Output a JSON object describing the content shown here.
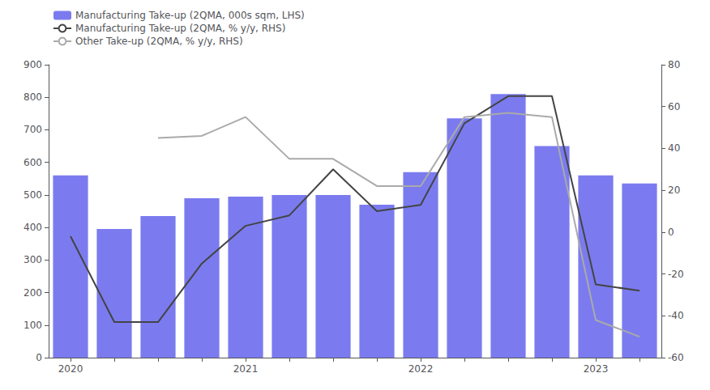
{
  "chart_data": {
    "type": "bar",
    "categories": [
      "2020",
      null,
      null,
      null,
      "2021",
      null,
      null,
      null,
      "2022",
      null,
      null,
      null,
      "2023",
      null
    ],
    "series": [
      {
        "name": "Manufacturing Take-up (2QMA, 000s sqm, LHS)",
        "type": "bar",
        "color": "#7b7bef",
        "axis": "y",
        "values": [
          560,
          395,
          435,
          490,
          495,
          500,
          500,
          470,
          570,
          735,
          810,
          650,
          560,
          535
        ]
      },
      {
        "name": "Manufacturing Take-up (2QMA, % y/y, RHS)",
        "type": "line",
        "color": "#444444",
        "axis": "y2",
        "values": [
          -2,
          -43,
          -43,
          -15,
          3,
          8,
          30,
          10,
          13,
          52,
          65,
          65,
          -25,
          -28
        ]
      },
      {
        "name": "Other Take-up (2QMA, % y/y, RHS)",
        "type": "line",
        "color": "#aaaaaa",
        "axis": "y2",
        "values": [
          null,
          null,
          45,
          46,
          55,
          35,
          35,
          22,
          22,
          55,
          57,
          55,
          -42,
          -50
        ]
      }
    ],
    "ylim": [
      0,
      900
    ],
    "yticks": [
      0,
      100,
      200,
      300,
      400,
      500,
      600,
      700,
      800,
      900
    ],
    "y2lim": [
      -60,
      80
    ],
    "y2ticks": [
      -60,
      -40,
      -20,
      0,
      20,
      40,
      60,
      80
    ],
    "grid": false,
    "legend": "upper left"
  }
}
